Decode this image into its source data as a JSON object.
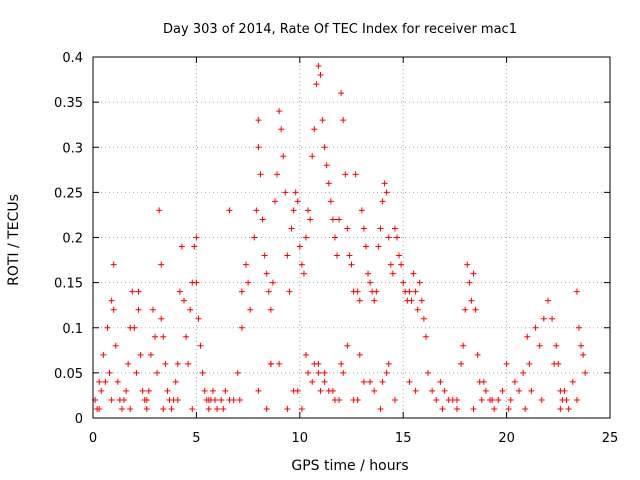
{
  "chart_data": {
    "type": "scatter",
    "title": "Day 303 of 2014, Rate Of TEC Index for receiver mac1",
    "xlabel": "GPS time / hours",
    "ylabel": "ROTI / TECUs",
    "xlim": [
      0,
      25
    ],
    "ylim": [
      0,
      0.4
    ],
    "grid": true,
    "marker": "+",
    "color": "#ff0000",
    "x_ticks": [
      0,
      5,
      10,
      15,
      20,
      25
    ],
    "x_tick_labels": [
      "0",
      "5",
      "10",
      "15",
      "20",
      "25"
    ],
    "y_ticks": [
      0,
      0.05,
      0.1,
      0.15,
      0.2,
      0.25,
      0.3,
      0.35,
      0.4
    ],
    "y_tick_labels": [
      "0",
      "0.05",
      "0.1",
      "0.15",
      "0.2",
      "0.25",
      "0.3",
      "0.35",
      "0.4"
    ],
    "series": [
      {
        "name": "ROTI",
        "x": [
          0.1,
          0.2,
          0.3,
          0.4,
          0.5,
          0.6,
          0.7,
          0.8,
          0.9,
          1.0,
          1.0,
          1.1,
          1.2,
          1.3,
          1.4,
          1.5,
          1.6,
          1.7,
          1.8,
          1.9,
          2.0,
          2.1,
          2.2,
          2.2,
          2.3,
          2.4,
          2.5,
          2.6,
          2.7,
          2.8,
          2.9,
          3.0,
          3.1,
          3.2,
          3.3,
          3.3,
          3.4,
          3.5,
          3.6,
          3.7,
          3.8,
          3.9,
          4.0,
          4.1,
          4.2,
          4.3,
          4.4,
          4.5,
          4.6,
          4.7,
          4.8,
          4.9,
          5.0,
          5.0,
          5.1,
          5.2,
          5.3,
          5.4,
          5.5,
          5.6,
          5.7,
          5.8,
          5.9,
          6.0,
          6.2,
          6.4,
          6.6,
          6.6,
          6.8,
          7.0,
          7.2,
          7.2,
          7.4,
          7.5,
          7.6,
          7.8,
          7.9,
          8.0,
          8.0,
          8.1,
          8.2,
          8.3,
          8.4,
          8.5,
          8.6,
          8.7,
          8.8,
          8.9,
          9.0,
          9.1,
          9.2,
          9.3,
          9.4,
          9.5,
          9.6,
          9.7,
          9.8,
          9.9,
          10.0,
          10.1,
          10.2,
          10.3,
          10.4,
          10.5,
          10.6,
          10.7,
          10.8,
          10.9,
          11.0,
          11.1,
          11.2,
          11.3,
          11.4,
          11.5,
          11.6,
          11.7,
          11.8,
          11.9,
          12.0,
          12.1,
          12.2,
          12.3,
          12.4,
          12.5,
          12.6,
          12.7,
          12.8,
          12.9,
          13.0,
          13.1,
          13.2,
          13.3,
          13.4,
          13.5,
          13.6,
          13.7,
          13.8,
          13.9,
          14.0,
          14.1,
          14.2,
          14.3,
          14.4,
          14.5,
          14.6,
          14.7,
          14.8,
          14.9,
          15.0,
          15.1,
          15.2,
          15.3,
          15.4,
          15.5,
          15.6,
          15.7,
          15.8,
          15.9,
          16.0,
          16.1,
          16.2,
          16.4,
          16.6,
          16.8,
          17.0,
          17.2,
          17.4,
          17.6,
          17.8,
          17.9,
          18.0,
          18.1,
          18.2,
          18.3,
          18.4,
          18.5,
          18.6,
          18.7,
          18.8,
          18.9,
          19.0,
          19.2,
          19.4,
          19.6,
          19.8,
          20.0,
          20.2,
          20.4,
          20.6,
          20.8,
          21.0,
          21.1,
          21.2,
          21.4,
          21.6,
          21.8,
          22.0,
          22.2,
          22.3,
          22.4,
          22.5,
          22.6,
          22.7,
          22.8,
          22.9,
          23.0,
          23.2,
          23.4,
          23.5,
          23.6,
          23.7,
          23.8,
          8.0,
          8.6,
          9.0,
          9.7,
          10.3,
          10.6,
          10.9,
          11.0,
          11.2,
          11.6,
          12.1,
          12.3,
          12.9,
          13.6,
          14.2,
          14.6,
          15.3,
          8.6,
          10.7,
          11.4,
          12.6,
          13.1,
          9.4,
          10.4,
          12.0,
          14.0,
          8.4,
          10.9,
          11.9,
          13.4,
          9.9,
          11.2,
          12.8,
          14.3,
          15.6,
          10.1,
          11.7,
          13.9,
          0.3,
          0.9,
          1.8,
          2.6,
          3.4,
          4.1,
          4.8,
          5.6,
          6.3,
          7.1,
          16.9,
          17.6,
          18.4,
          19.3,
          20.1,
          20.9,
          21.7,
          22.6,
          23.4
        ],
        "y": [
          0.02,
          0.01,
          0.04,
          0.03,
          0.07,
          0.04,
          0.1,
          0.05,
          0.13,
          0.17,
          0.12,
          0.08,
          0.04,
          0.02,
          0.01,
          0.02,
          0.03,
          0.06,
          0.1,
          0.14,
          0.1,
          0.05,
          0.14,
          0.12,
          0.07,
          0.03,
          0.02,
          0.01,
          0.03,
          0.07,
          0.12,
          0.09,
          0.05,
          0.23,
          0.17,
          0.11,
          0.09,
          0.06,
          0.03,
          0.02,
          0.01,
          0.02,
          0.04,
          0.06,
          0.14,
          0.19,
          0.13,
          0.09,
          0.06,
          0.12,
          0.15,
          0.19,
          0.2,
          0.15,
          0.11,
          0.08,
          0.05,
          0.03,
          0.02,
          0.01,
          0.02,
          0.03,
          0.02,
          0.01,
          0.02,
          0.03,
          0.02,
          0.23,
          0.02,
          0.05,
          0.14,
          0.1,
          0.17,
          0.15,
          0.12,
          0.2,
          0.23,
          0.33,
          0.3,
          0.27,
          0.22,
          0.18,
          0.16,
          0.14,
          0.12,
          0.15,
          0.24,
          0.27,
          0.34,
          0.32,
          0.29,
          0.25,
          0.18,
          0.14,
          0.21,
          0.23,
          0.25,
          0.24,
          0.19,
          0.17,
          0.16,
          0.2,
          0.23,
          0.22,
          0.29,
          0.32,
          0.37,
          0.39,
          0.38,
          0.33,
          0.3,
          0.28,
          0.26,
          0.24,
          0.22,
          0.2,
          0.18,
          0.22,
          0.36,
          0.33,
          0.27,
          0.21,
          0.18,
          0.17,
          0.14,
          0.27,
          0.14,
          0.13,
          0.23,
          0.21,
          0.19,
          0.16,
          0.15,
          0.14,
          0.13,
          0.14,
          0.19,
          0.21,
          0.24,
          0.26,
          0.25,
          0.2,
          0.17,
          0.16,
          0.21,
          0.2,
          0.18,
          0.17,
          0.15,
          0.14,
          0.13,
          0.14,
          0.13,
          0.16,
          0.14,
          0.12,
          0.15,
          0.13,
          0.11,
          0.09,
          0.05,
          0.03,
          0.02,
          0.04,
          0.03,
          0.02,
          0.02,
          0.01,
          0.06,
          0.08,
          0.12,
          0.17,
          0.15,
          0.13,
          0.16,
          0.12,
          0.07,
          0.04,
          0.02,
          0.04,
          0.03,
          0.02,
          0.01,
          0.02,
          0.03,
          0.06,
          0.02,
          0.04,
          0.03,
          0.05,
          0.09,
          0.06,
          0.03,
          0.1,
          0.08,
          0.11,
          0.13,
          0.11,
          0.06,
          0.08,
          0.06,
          0.03,
          0.02,
          0.03,
          0.02,
          0.01,
          0.04,
          0.14,
          0.1,
          0.08,
          0.07,
          0.05,
          0.03,
          0.06,
          0.06,
          0.03,
          0.07,
          0.04,
          0.05,
          0.03,
          0.04,
          0.03,
          0.05,
          0.08,
          0.07,
          0.03,
          0.05,
          0.02,
          0.04,
          0.06,
          0.06,
          0.03,
          0.02,
          0.04,
          0.01,
          0.05,
          0.06,
          0.04,
          0.01,
          0.06,
          0.02,
          0.04,
          0.03,
          0.05,
          0.02,
          0.06,
          0.03,
          0.01,
          0.02,
          0.01,
          0.01,
          0.02,
          0.01,
          0.02,
          0.01,
          0.02,
          0.01,
          0.02,
          0.01,
          0.02,
          0.01,
          0.02,
          0.01,
          0.02,
          0.01,
          0.01,
          0.02,
          0.01,
          0.02
        ]
      }
    ]
  }
}
